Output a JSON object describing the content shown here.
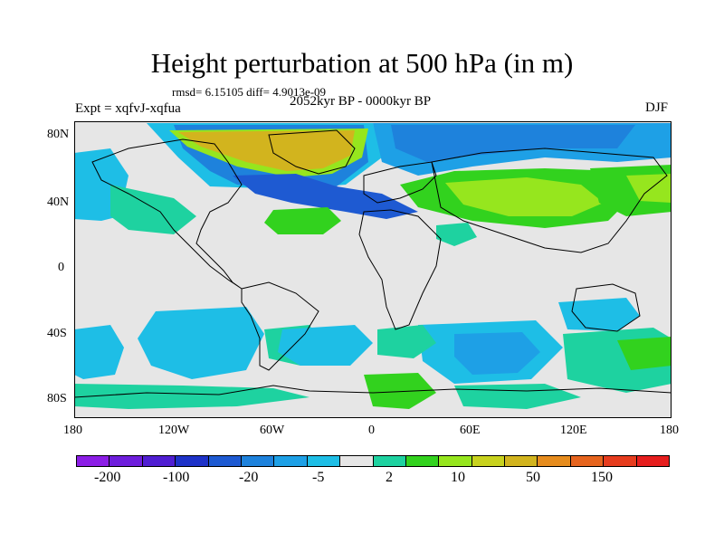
{
  "title": "Height perturbation at 500 hPa (in m)",
  "stats": "rmsd= 6.15105 diff= 4.9013e-09",
  "experiment": "Expt = xqfvJ-xqfua",
  "period": "2052kyr BP - 0000kyr BP",
  "season": "DJF",
  "lat_ticks": [
    "80N",
    "40N",
    "0",
    "40S",
    "80S"
  ],
  "lon_ticks": [
    "180",
    "120W",
    "60W",
    "0",
    "60E",
    "120E",
    "180"
  ],
  "colorbar": {
    "colors": [
      "#8c1ee6",
      "#6e1edc",
      "#501ed2",
      "#1e32c8",
      "#1e5ad2",
      "#1e82dc",
      "#1ea0e6",
      "#1ebee6",
      "#e6e6e6",
      "#1ed2a0",
      "#32d21e",
      "#96e61e",
      "#c8d21e",
      "#d2b41e",
      "#e68c1e",
      "#e6641e",
      "#e63c1e",
      "#e61e1e"
    ],
    "labels": [
      "-200",
      "-100",
      "-20",
      "-5",
      "2",
      "10",
      "50",
      "150"
    ]
  },
  "field_colors": {
    "neutral": "#e6e6e6",
    "cyan": "#1ebee6",
    "light_blue": "#1ea0e6",
    "mid_blue": "#1e82dc",
    "blue": "#1e5ad2",
    "dark_blue": "#1e32c8",
    "teal": "#1ed2a0",
    "green": "#32d21e",
    "yellow_green": "#96e61e",
    "olive": "#c8d21e",
    "gold": "#d2b41e"
  }
}
